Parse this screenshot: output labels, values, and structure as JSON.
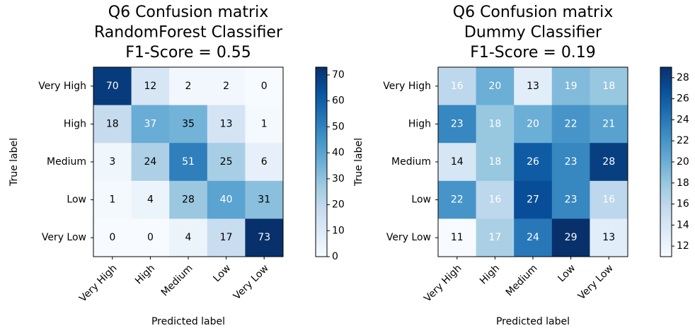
{
  "chart_data": [
    {
      "type": "heatmap",
      "title": [
        "Q6 Confusion matrix",
        "RandomForest Classifier",
        "F1-Score = 0.55"
      ],
      "ylabel": "True label",
      "xlabel": "Predicted label",
      "colormap": "Blues",
      "rows": [
        "Very High",
        "High",
        "Medium",
        "Low",
        "Very Low"
      ],
      "categories": [
        "Very High",
        "High",
        "Medium",
        "Low",
        "Very Low"
      ],
      "values": [
        [
          70,
          12,
          2,
          2,
          0
        ],
        [
          18,
          37,
          35,
          13,
          1
        ],
        [
          3,
          24,
          51,
          25,
          6
        ],
        [
          1,
          4,
          28,
          40,
          31
        ],
        [
          0,
          0,
          4,
          17,
          73
        ]
      ],
      "clim": [
        0,
        73
      ],
      "cticks": [
        0,
        10,
        20,
        30,
        40,
        50,
        60,
        70
      ]
    },
    {
      "type": "heatmap",
      "title": [
        "Q6 Confusion matrix",
        "Dummy Classifier",
        "F1-Score = 0.19"
      ],
      "ylabel": "True label",
      "xlabel": "Predicted label",
      "colormap": "Blues",
      "rows": [
        "Very High",
        "High",
        "Medium",
        "Low",
        "Very Low"
      ],
      "categories": [
        "Very High",
        "High",
        "Medium",
        "Low",
        "Very Low"
      ],
      "values": [
        [
          16,
          20,
          13,
          19,
          18
        ],
        [
          23,
          18,
          20,
          22,
          21
        ],
        [
          14,
          18,
          26,
          23,
          28
        ],
        [
          22,
          16,
          27,
          23,
          16
        ],
        [
          11,
          17,
          24,
          29,
          13
        ]
      ],
      "clim": [
        11,
        29
      ],
      "cticks": [
        12,
        14,
        16,
        18,
        20,
        22,
        24,
        26,
        28
      ]
    }
  ]
}
